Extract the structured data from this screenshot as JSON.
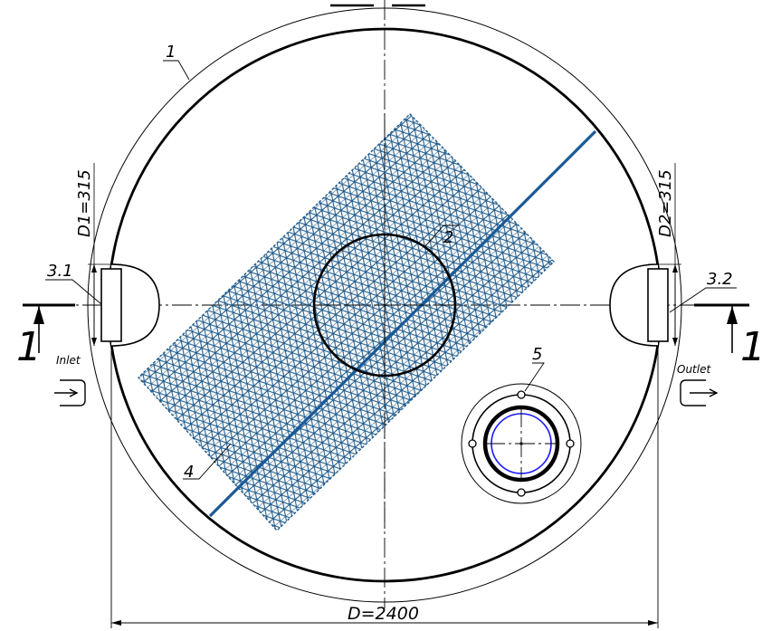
{
  "drawing": {
    "labels": {
      "item_1": "1",
      "item_2": "2",
      "item_3_1": "3.1",
      "item_3_2": "3.2",
      "item_4": "4",
      "item_5": "5",
      "section_left": "1",
      "section_right": "1"
    },
    "dimensions": {
      "diameter": "D=2400",
      "inlet_diameter": "D1=315",
      "outlet_diameter": "D2=315"
    },
    "flow": {
      "inlet": "Inlet",
      "outlet": "Outlet"
    },
    "colors": {
      "outline": "#000000",
      "mesh": "#1f5a8a",
      "mesh_bar": "#1a5a96",
      "hatch_ring": "#1a1aff"
    }
  }
}
